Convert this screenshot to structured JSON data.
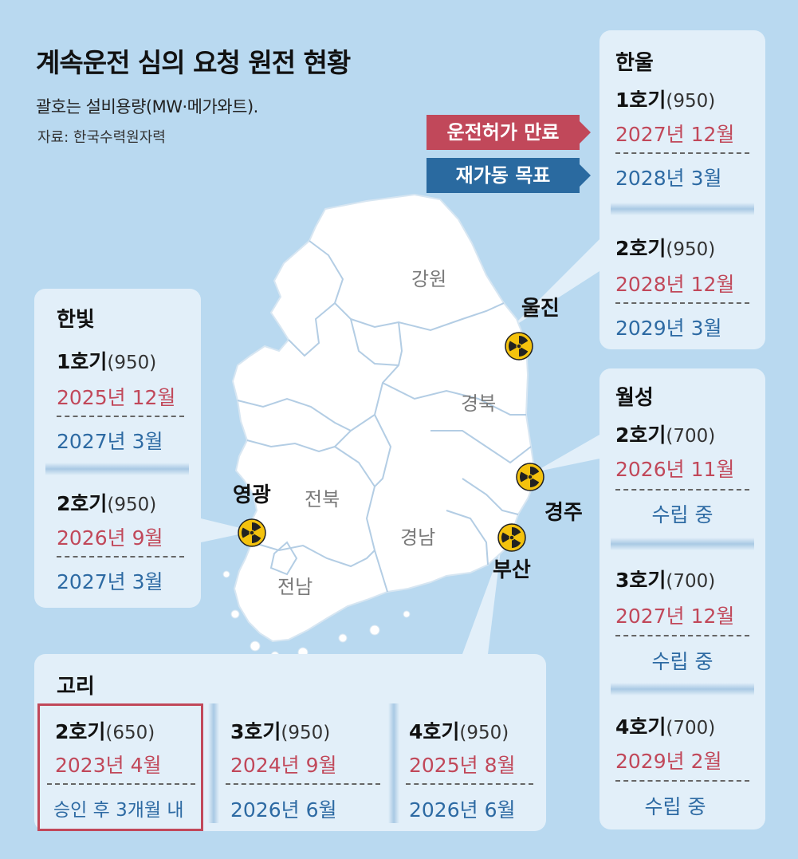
{
  "header": {
    "title": "계속운전 심의 요청 원전 현황",
    "subtitle": "괄호는 설비용량(MW·메가와트).",
    "source": "자료: 한국수력원자력"
  },
  "legend": {
    "expiry_label": "운전허가 만료",
    "restart_label": "재가동 목표",
    "expiry_color": "#c1485a",
    "restart_color": "#2a6aa0"
  },
  "map": {
    "regions": [
      "강원",
      "경북",
      "전북",
      "경남",
      "전남"
    ],
    "cities": [
      "울진",
      "경주",
      "부산",
      "영광"
    ],
    "marker_icon": "radiation-icon"
  },
  "hanul": {
    "name": "한울",
    "units": [
      {
        "unit": "1호기",
        "capacity": "(950)",
        "expiry": "2027년 12월",
        "restart": "2028년 3월"
      },
      {
        "unit": "2호기",
        "capacity": "(950)",
        "expiry": "2028년 12월",
        "restart": "2029년 3월"
      }
    ]
  },
  "hanbit": {
    "name": "한빛",
    "units": [
      {
        "unit": "1호기",
        "capacity": "(950)",
        "expiry": "2025년 12월",
        "restart": "2027년 3월"
      },
      {
        "unit": "2호기",
        "capacity": "(950)",
        "expiry": "2026년 9월",
        "restart": "2027년 3월"
      }
    ]
  },
  "wolsong": {
    "name": "월성",
    "units": [
      {
        "unit": "2호기",
        "capacity": "(700)",
        "expiry": "2026년 11월",
        "restart": "수립 중"
      },
      {
        "unit": "3호기",
        "capacity": "(700)",
        "expiry": "2027년 12월",
        "restart": "수립 중"
      },
      {
        "unit": "4호기",
        "capacity": "(700)",
        "expiry": "2029년 2월",
        "restart": "수립 중"
      }
    ]
  },
  "kori": {
    "name": "고리",
    "units": [
      {
        "unit": "2호기",
        "capacity": "(650)",
        "expiry": "2023년 4월",
        "restart": "승인 후 3개월 내"
      },
      {
        "unit": "3호기",
        "capacity": "(950)",
        "expiry": "2024년 9월",
        "restart": "2026년 6월"
      },
      {
        "unit": "4호기",
        "capacity": "(950)",
        "expiry": "2025년 8월",
        "restart": "2026년 6월"
      }
    ]
  }
}
